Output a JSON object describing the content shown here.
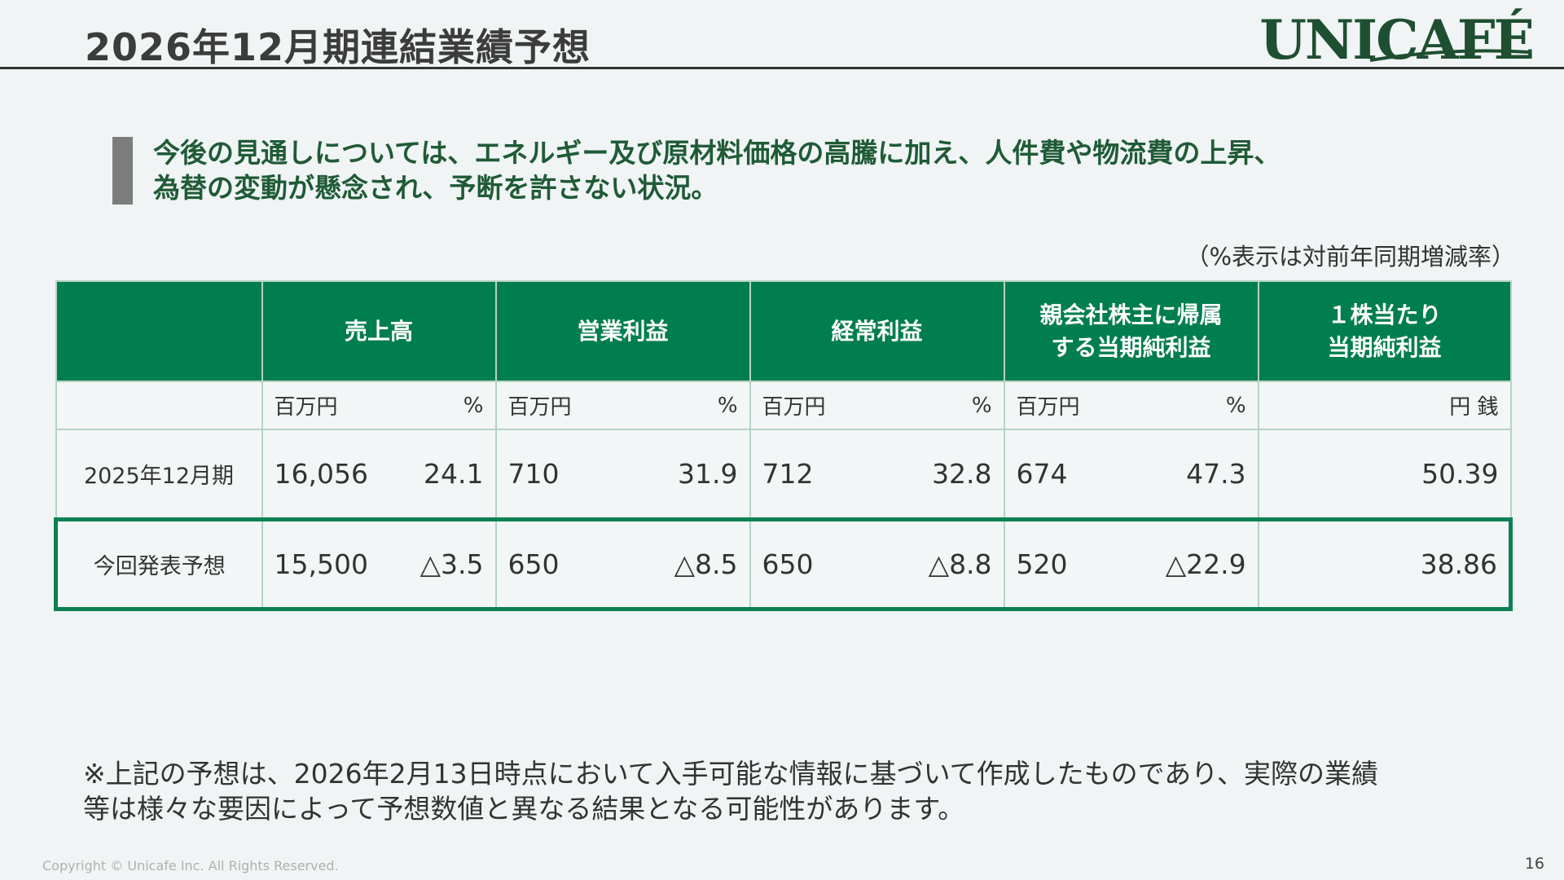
{
  "header": {
    "title": "2026年12月期連結業績予想",
    "logo_text": "UNICAFÉ"
  },
  "headline": {
    "line1": "今後の見通しについては、エネルギー及び原材料価格の高騰に加え、人件費や物流費の上昇、",
    "line2": "為替の変動が懸念され、予断を許さない状況。"
  },
  "unit_note": "（%表示は対前年同期増減率）",
  "table": {
    "columns": [
      {
        "label_lines": [
          "売上高"
        ],
        "unit": "百万円",
        "pct_unit": "%"
      },
      {
        "label_lines": [
          "営業利益"
        ],
        "unit": "百万円",
        "pct_unit": "%"
      },
      {
        "label_lines": [
          "経常利益"
        ],
        "unit": "百万円",
        "pct_unit": "%"
      },
      {
        "label_lines": [
          "親会社株主に帰属",
          "する当期純利益"
        ],
        "unit": "百万円",
        "pct_unit": "%"
      },
      {
        "label_lines": [
          "１株当たり",
          "当期純利益"
        ],
        "unit": "円 銭"
      }
    ],
    "rows": [
      {
        "label": "2025年12月期",
        "values": [
          "16,056",
          "24.1",
          "710",
          "31.9",
          "712",
          "32.8",
          "674",
          "47.3",
          "50.39"
        ]
      },
      {
        "label": "今回発表予想",
        "values": [
          "15,500",
          "△3.5",
          "650",
          "△8.5",
          "650",
          "△8.8",
          "520",
          "△22.9",
          "38.86"
        ]
      }
    ]
  },
  "footnote": {
    "line1": "※上記の予想は、2026年2月13日時点において入手可能な情報に基づいて作成したものであり、実際の業績",
    "line2": "等は様々な要因によって予想数値と異なる結果となる可能性があります。"
  },
  "footer": {
    "copyright": "Copyright © Unicafe Inc. All Rights Reserved.",
    "page_number": "16"
  },
  "colors": {
    "header_green": "#007e4f",
    "headline_green": "#1f5b36",
    "highlight_border": "#0b8152"
  }
}
